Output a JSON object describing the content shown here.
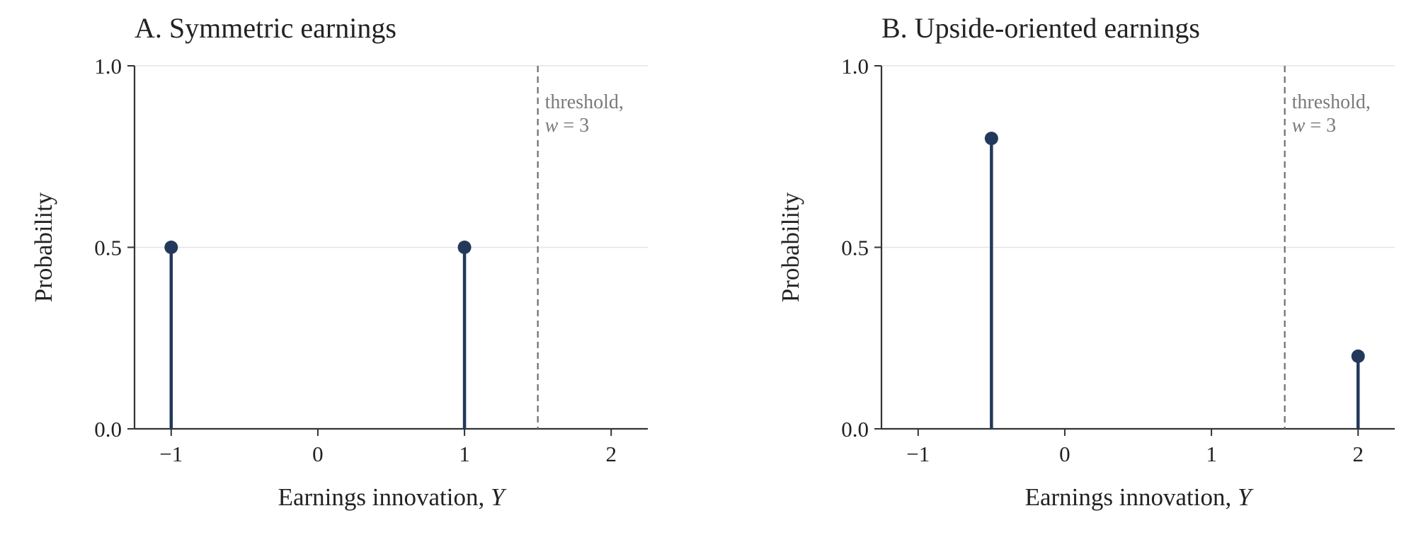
{
  "chart_data": [
    {
      "type": "stem",
      "title": "A. Symmetric earnings",
      "xlabel_text": "Earnings innovation, ",
      "xlabel_var": "Y",
      "ylabel": "Probability",
      "xlim": [
        -1.25,
        2.25
      ],
      "ylim": [
        0,
        1
      ],
      "xticks": [
        -1,
        0,
        1,
        2
      ],
      "xtick_labels": [
        "−1",
        "0",
        "1",
        "2"
      ],
      "yticks": [
        0,
        0.5,
        1
      ],
      "ytick_labels": [
        "0.0",
        "0.5",
        "1.0"
      ],
      "grid": "horizontal",
      "points": [
        {
          "x": -1,
          "y": 0.5
        },
        {
          "x": 1,
          "y": 0.5
        }
      ],
      "threshold": {
        "x": 1.5,
        "line1": "threshold,",
        "var": "w",
        "rest": " = 3"
      }
    },
    {
      "type": "stem",
      "title": "B. Upside-oriented earnings",
      "xlabel_text": "Earnings innovation, ",
      "xlabel_var": "Y",
      "ylabel": "Probability",
      "xlim": [
        -1.25,
        2.25
      ],
      "ylim": [
        0,
        1
      ],
      "xticks": [
        -1,
        0,
        1,
        2
      ],
      "xtick_labels": [
        "−1",
        "0",
        "1",
        "2"
      ],
      "yticks": [
        0,
        0.5,
        1
      ],
      "ytick_labels": [
        "0.0",
        "0.5",
        "1.0"
      ],
      "grid": "horizontal",
      "points": [
        {
          "x": -0.5,
          "y": 0.8
        },
        {
          "x": 2,
          "y": 0.2
        }
      ],
      "threshold": {
        "x": 1.5,
        "line1": "threshold,",
        "var": "w",
        "rest": " = 3"
      }
    }
  ],
  "colors": {
    "stem": "#23395b",
    "axis": "#333333",
    "grid": "#e3e3e3",
    "threshold": "#6e6e6e"
  }
}
